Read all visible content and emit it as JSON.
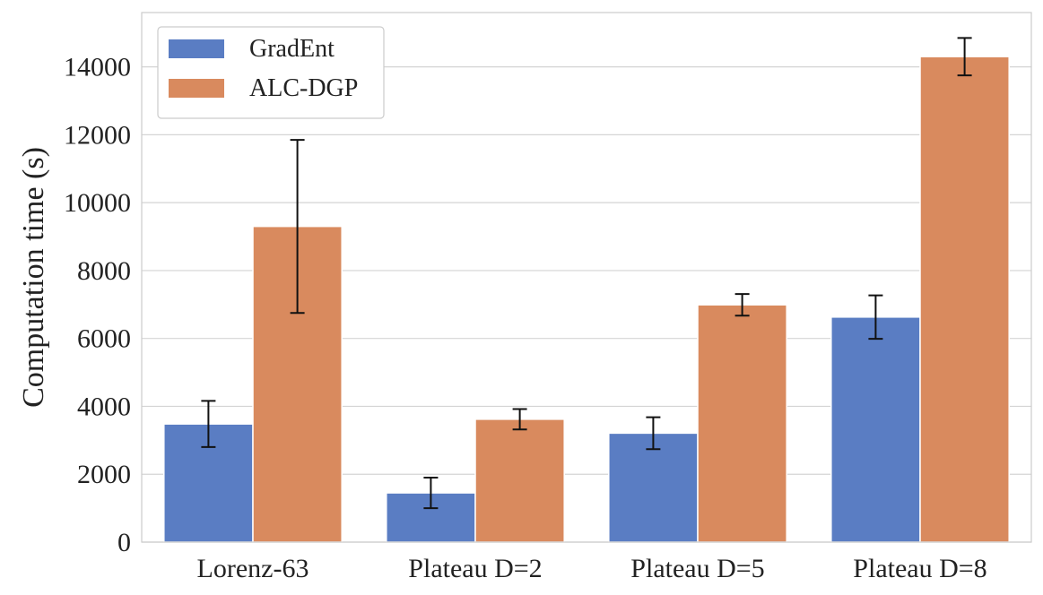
{
  "chart_data": {
    "type": "bar",
    "title": "",
    "xlabel": "",
    "ylabel": "Computation time (s)",
    "ylim": [
      0,
      15600
    ],
    "yticks": [
      0,
      2000,
      4000,
      6000,
      8000,
      10000,
      12000,
      14000
    ],
    "grid": true,
    "legend_position": "top-left",
    "categories": [
      "Lorenz-63",
      "Plateau D=2",
      "Plateau D=5",
      "Plateau D=8"
    ],
    "series": [
      {
        "name": "GradEnt",
        "color": "#5a7dc3",
        "values": [
          3480,
          1450,
          3210,
          6630
        ],
        "error": [
          680,
          450,
          470,
          640
        ]
      },
      {
        "name": "ALC-DGP",
        "color": "#d98a5e",
        "values": [
          9300,
          3620,
          6990,
          14300
        ],
        "error": [
          2550,
          300,
          320,
          550
        ]
      }
    ]
  }
}
